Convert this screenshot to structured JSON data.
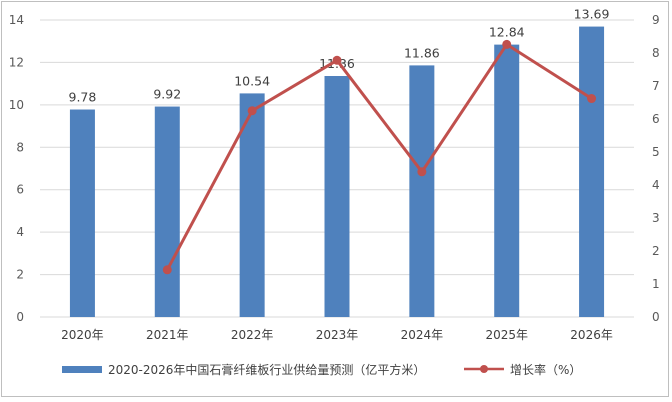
{
  "chart_data": {
    "type": "bar",
    "categories": [
      "2020年",
      "2021年",
      "2022年",
      "2023年",
      "2024年",
      "2025年",
      "2026年"
    ],
    "series": [
      {
        "name": "2020-2026年中国石膏纤维板行业供给量预测（亿平方米）",
        "type": "bar",
        "axis": "left",
        "values": [
          9.78,
          9.92,
          10.54,
          11.36,
          11.86,
          12.84,
          13.69
        ],
        "data_labels": [
          "9.78",
          "9.92",
          "10.54",
          "11.36",
          "11.86",
          "12.84",
          "13.69"
        ],
        "color": "#4f81bd"
      },
      {
        "name": "增长率（%）",
        "type": "line",
        "axis": "right",
        "values": [
          null,
          1.43,
          6.25,
          7.78,
          4.4,
          8.26,
          6.62
        ],
        "color": "#c0504d"
      }
    ],
    "y_left": {
      "ylim": [
        0,
        14
      ],
      "ticks": [
        "0",
        "2",
        "4",
        "6",
        "8",
        "10",
        "12",
        "14"
      ]
    },
    "y_right": {
      "ylim": [
        0,
        9
      ],
      "ticks": [
        "0",
        "1",
        "2",
        "3",
        "4",
        "5",
        "6",
        "7",
        "8",
        "9"
      ]
    },
    "grid": true,
    "legend_position": "bottom"
  }
}
